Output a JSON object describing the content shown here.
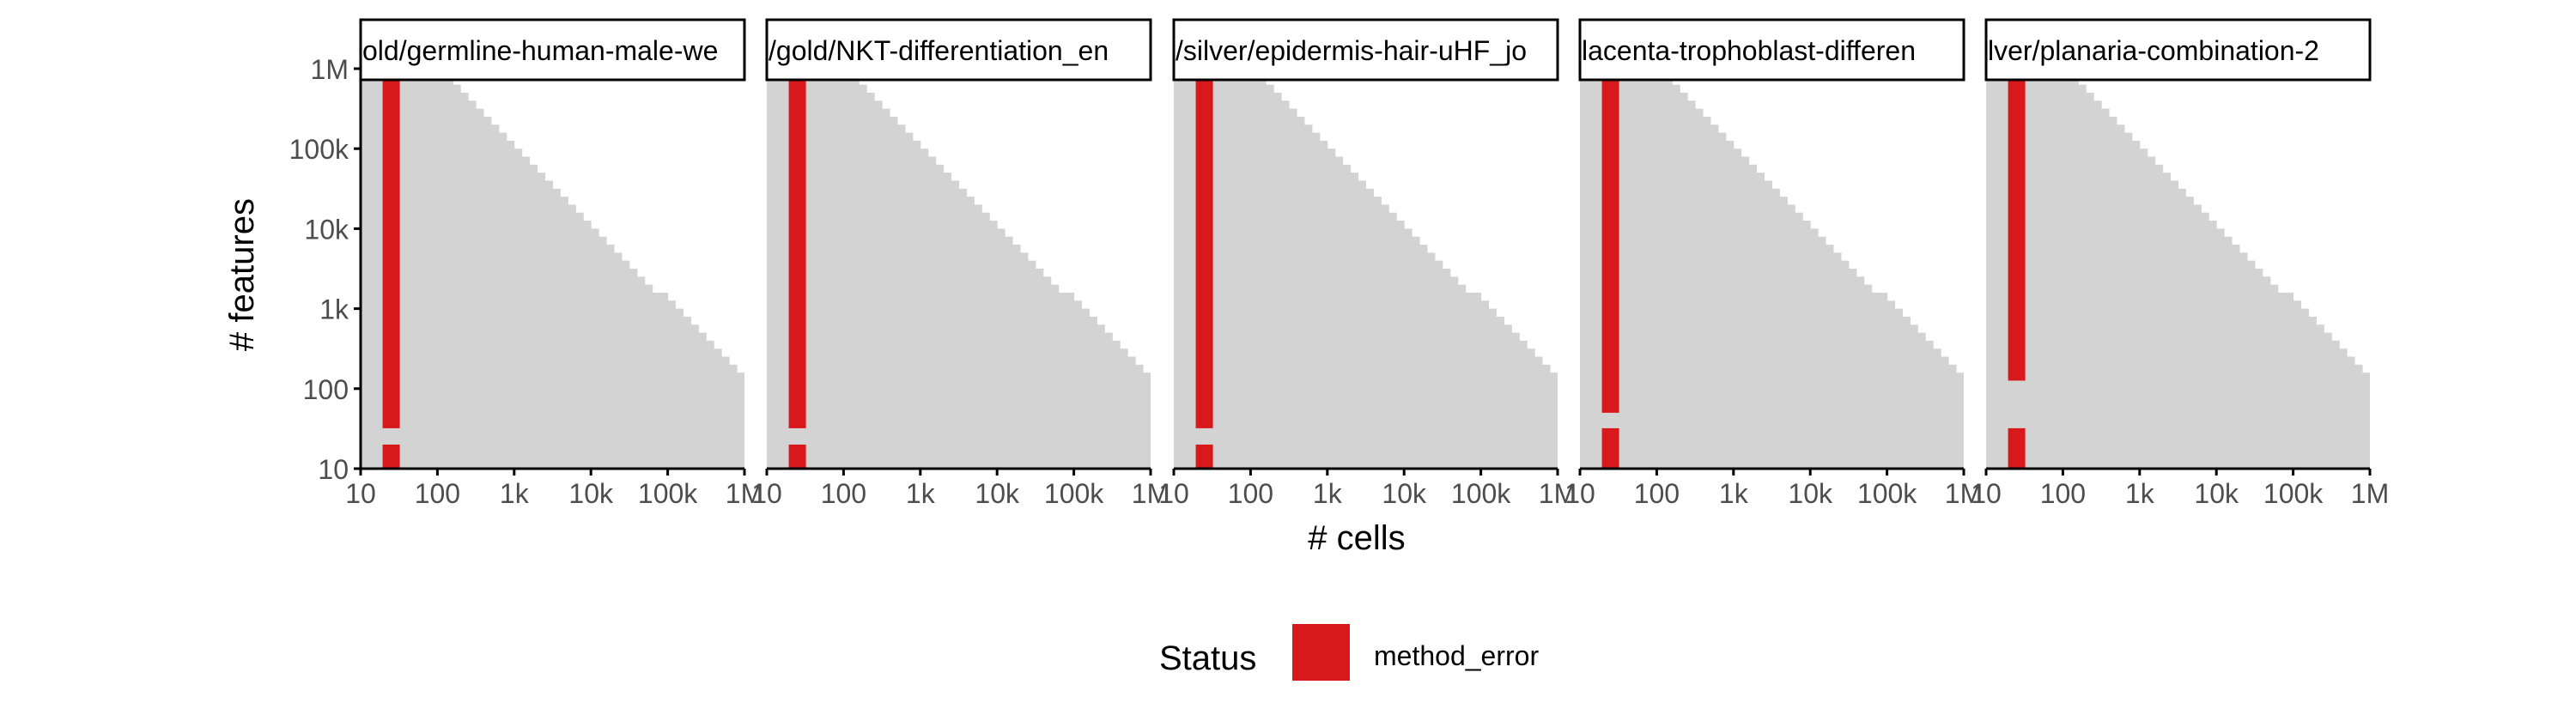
{
  "chart_data": {
    "type": "heatmap",
    "xlabel": "# cells",
    "ylabel": "# features",
    "x_scale": "log10",
    "y_scale": "log10",
    "xlim": [
      10,
      1000000
    ],
    "ylim": [
      10,
      1000000
    ],
    "x_ticks": [
      {
        "value": 10,
        "label": "10"
      },
      {
        "value": 100,
        "label": "100"
      },
      {
        "value": 1000,
        "label": "1k"
      },
      {
        "value": 10000,
        "label": "10k"
      },
      {
        "value": 100000,
        "label": "100k"
      },
      {
        "value": 1000000,
        "label": "1M"
      }
    ],
    "y_ticks": [
      {
        "value": 10,
        "label": "10"
      },
      {
        "value": 100,
        "label": "100"
      },
      {
        "value": 1000,
        "label": "1k"
      },
      {
        "value": 10000,
        "label": "10k"
      },
      {
        "value": 100000,
        "label": "100k"
      },
      {
        "value": 1000000,
        "label": "1M"
      }
    ],
    "grid": false,
    "background_color": "#d3d3d3",
    "status_color": "#d7191c",
    "legend": {
      "title": "Status",
      "position": "bottom",
      "entries": [
        {
          "label": "method_error",
          "color": "#d7191c"
        }
      ]
    },
    "panels": [
      {
        "strip_label": "old/germline-human-male-we",
        "method_error_column": {
          "x": 25,
          "y_ranges": [
            [
              10,
              20
            ],
            [
              32,
              1000000
            ]
          ]
        }
      },
      {
        "strip_label": "/gold/NKT-differentiation_en",
        "method_error_column": {
          "x": 25,
          "y_ranges": [
            [
              10,
              20
            ],
            [
              32,
              1000000
            ]
          ]
        }
      },
      {
        "strip_label": "/silver/epidermis-hair-uHF_jo",
        "method_error_column": {
          "x": 25,
          "y_ranges": [
            [
              10,
              20
            ],
            [
              32,
              1000000
            ]
          ]
        }
      },
      {
        "strip_label": "lacenta-trophoblast-differen",
        "method_error_column": {
          "x": 25,
          "y_ranges": [
            [
              10,
              32
            ],
            [
              50,
              1000000
            ]
          ]
        }
      },
      {
        "strip_label": "lver/planaria-combination-2",
        "method_error_column": {
          "x": 25,
          "y_ranges": [
            [
              10,
              32
            ],
            [
              126,
              1000000
            ]
          ]
        }
      }
    ]
  }
}
